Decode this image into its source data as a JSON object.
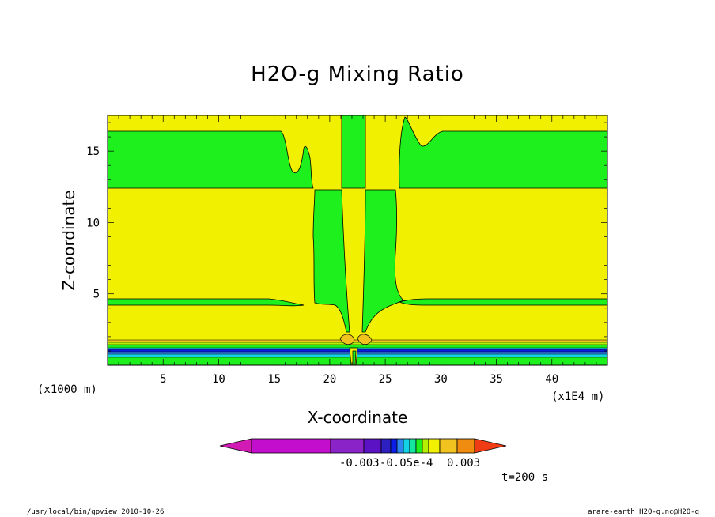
{
  "chart_data": {
    "type": "contour",
    "title": "H2O-g Mixing Ratio",
    "xlabel": "X-coordinate",
    "ylabel": "Z-coordinate",
    "x_unit_left": "(x1000 m)",
    "x_unit_right": "(x1E4 m)",
    "x_ticks": [
      "5",
      "10",
      "15",
      "20",
      "25",
      "30",
      "35",
      "40"
    ],
    "y_ticks": [
      "5",
      "10",
      "15"
    ],
    "xlim": [
      0,
      45
    ],
    "ylim": [
      0,
      17.5
    ],
    "colorbar": {
      "colors": [
        "#d21ab4",
        "#c30fcd",
        "#8a23c8",
        "#5a12c4",
        "#2e1fc0",
        "#0a1ee6",
        "#2f85f0",
        "#14d2e6",
        "#14e6a0",
        "#1ef01e",
        "#b4f000",
        "#f0f000",
        "#f0c31e",
        "#f08c0f",
        "#f03c14"
      ],
      "labels": [
        "-0.003",
        "-0.05e-4",
        "0.003"
      ],
      "extends": [
        "left",
        "right"
      ]
    },
    "time_label": "t=200 s"
  },
  "footer": {
    "left": "/usr/local/bin/gpview  2010-10-26",
    "right": "arare-earth_H2O-g.nc@H2O-g"
  }
}
